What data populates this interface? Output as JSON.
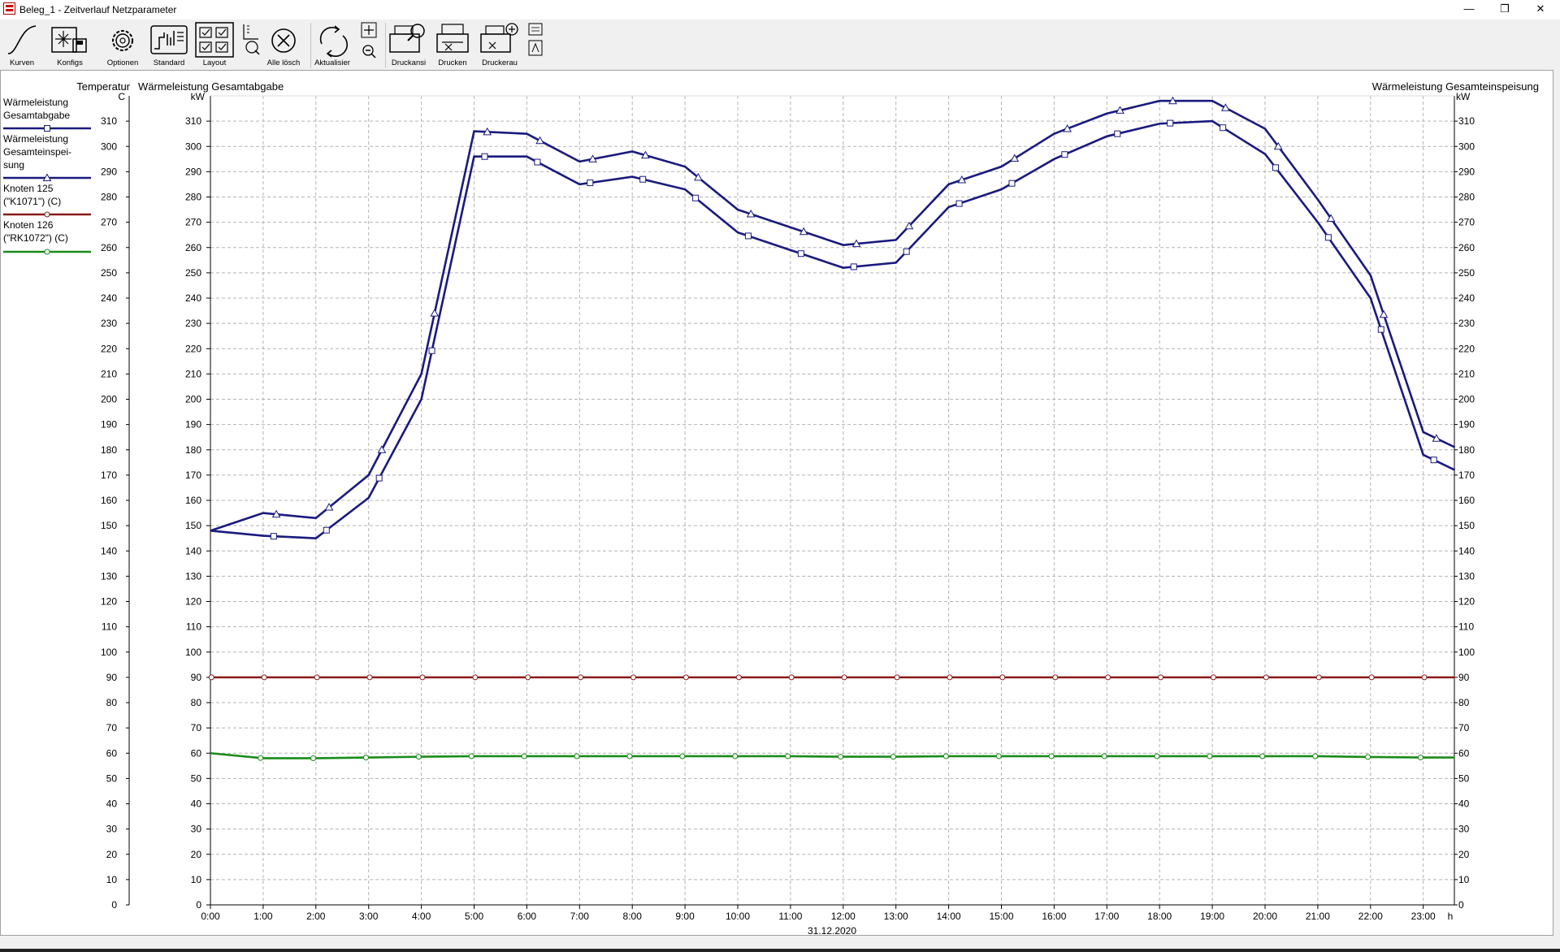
{
  "window": {
    "title": "Beleg_1 - Zeitverlauf Netzparameter",
    "buttons": [
      "—",
      "❐",
      "✕"
    ]
  },
  "toolbar": {
    "items": [
      {
        "label": "Kurven",
        "icon": "curve-icon"
      },
      {
        "label": "Konfigs",
        "icon": "config-save-icon"
      },
      {
        "label": "Optionen",
        "icon": "gear-icon"
      },
      {
        "label": "Standard",
        "icon": "standard-chart-icon"
      },
      {
        "label": "Layout",
        "icon": "layout-icon"
      },
      {
        "label": "",
        "icon": "axis-settings-icon"
      },
      {
        "label": "Alle lösch",
        "icon": "clear-all-icon"
      },
      {
        "label": "Aktualisier",
        "icon": "refresh-icon"
      },
      {
        "label": "",
        "icon": "zoom-icon"
      },
      {
        "label": "Druckansi",
        "icon": "print-preview-icon"
      },
      {
        "label": "Drucken",
        "icon": "printer-icon"
      },
      {
        "label": "Druckerau",
        "icon": "printer-setup-icon"
      },
      {
        "label": "",
        "icon": "export-icon"
      }
    ]
  },
  "legend": {
    "entries": [
      {
        "lines": [
          "Wärmeleistung",
          "Gesamtabgabe"
        ],
        "color": "#1a1a7e",
        "marker": "square"
      },
      {
        "lines": [
          "Wärmeleistung",
          "Gesamteinspei-",
          "sung"
        ],
        "color": "#1a1a7e",
        "marker": "triangle"
      },
      {
        "lines": [
          "Knoten 125",
          "(\"K1071\") (C)"
        ],
        "color": "#8b1a1a",
        "marker": "circle"
      },
      {
        "lines": [
          "Knoten 126",
          "(\"RK1072\") (C)"
        ],
        "color": "#1a8c1a",
        "marker": "circle"
      }
    ]
  },
  "chart_data": {
    "type": "line",
    "axes_titles": {
      "temp_axis": "Temperatur",
      "left_axis": "Wärmeleistung Gesamtabgabe",
      "right_axis": "Wärmeleistung Gesamteinspeisung"
    },
    "units": {
      "temp": "C",
      "left": "kW",
      "right": "kW"
    },
    "ylim": [
      0,
      320
    ],
    "ytick_step": 10,
    "x_ticks": [
      "0:00",
      "1:00",
      "2:00",
      "3:00",
      "4:00",
      "5:00",
      "6:00",
      "7:00",
      "8:00",
      "9:00",
      "10:00",
      "11:00",
      "12:00",
      "13:00",
      "14:00",
      "15:00",
      "16:00",
      "17:00",
      "18:00",
      "19:00",
      "20:00",
      "21:00",
      "22:00",
      "23:00",
      "h"
    ],
    "x_range_hours": [
      0,
      23.6
    ],
    "date_label": "31.12.2020",
    "grid": true,
    "series": [
      {
        "name": "Wärmeleistung Gesamtabgabe",
        "color": "#1a1a7e",
        "marker": "square",
        "x": [
          0,
          1,
          2,
          3,
          4,
          5,
          6,
          7,
          8,
          9,
          10,
          11,
          12,
          13,
          14,
          15,
          16,
          17,
          18,
          19,
          20,
          21,
          22,
          23,
          23.6
        ],
        "y": [
          148,
          146,
          145,
          161,
          200,
          296,
          296,
          285,
          288,
          283,
          266,
          259,
          252,
          254,
          276,
          283,
          295,
          304,
          309,
          310,
          297,
          270,
          240,
          178,
          172
        ]
      },
      {
        "name": "Wärmeleistung Gesamteinspeisung",
        "color": "#1a1a7e",
        "marker": "triangle",
        "x": [
          0,
          1,
          2,
          3,
          4,
          5,
          6,
          7,
          8,
          9,
          10,
          11,
          12,
          13,
          14,
          15,
          16,
          17,
          18,
          19,
          20,
          21,
          22,
          23,
          23.6
        ],
        "y": [
          148,
          155,
          153,
          170,
          210,
          306,
          305,
          294,
          298,
          292,
          275,
          268,
          261,
          263,
          285,
          292,
          305,
          313,
          318,
          318,
          307,
          279,
          249,
          187,
          181
        ]
      },
      {
        "name": "Knoten 125 (\"K1071\") (C)",
        "color": "#8b1a1a",
        "marker": "circle",
        "x": [
          0,
          23.6
        ],
        "y": [
          90,
          90
        ]
      },
      {
        "name": "Knoten 126 (\"RK1072\") (C)",
        "color": "#1a8c1a",
        "marker": "circle",
        "x": [
          0,
          1,
          2,
          3,
          4,
          5,
          6,
          7,
          8,
          9,
          10,
          11,
          12,
          13,
          14,
          15,
          16,
          17,
          18,
          19,
          20,
          21,
          22,
          23,
          23.6
        ],
        "y": [
          60,
          58,
          58,
          58.3,
          58.6,
          58.8,
          58.8,
          58.8,
          58.8,
          58.8,
          58.8,
          58.8,
          58.6,
          58.6,
          58.8,
          58.8,
          58.8,
          58.8,
          58.8,
          58.8,
          58.8,
          58.8,
          58.5,
          58.3,
          58.3
        ]
      }
    ]
  }
}
